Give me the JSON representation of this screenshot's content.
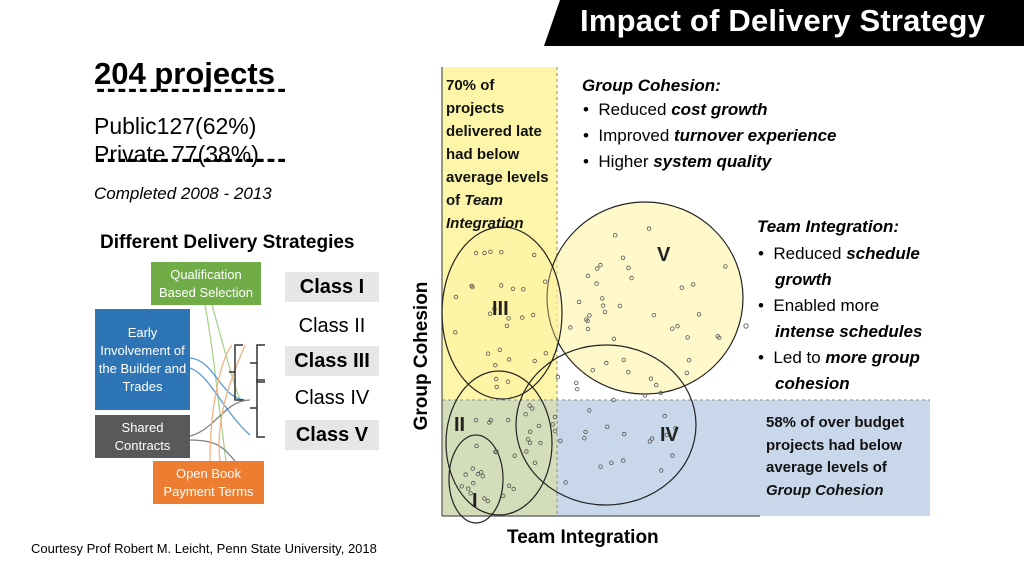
{
  "title": "Impact of Delivery Strategy",
  "stats": {
    "total": "204 projects",
    "dashes": "------------------",
    "public_label": "Public",
    "public_value": "127(62%)",
    "private_label": "Private",
    "private_value": "77(38%)",
    "completed": "Completed 2008 - 2013"
  },
  "strategies": {
    "title": "Different Delivery Strategies",
    "boxes": {
      "qbs": "Qualification Based Selection",
      "early": "Early Involvement of the Builder and Trades",
      "shared": "Shared Contracts",
      "open": "Open Book Payment Terms"
    },
    "classes": [
      "Class I",
      "Class II",
      "Class III",
      "Class IV",
      "Class V"
    ]
  },
  "chart": {
    "y_axis": "Group Cohesion",
    "x_axis": "Team Integration",
    "regions": [
      "I",
      "II",
      "III",
      "IV",
      "V"
    ],
    "yellow_note": {
      "text": "70% of projects delivered late had below average levels of",
      "emphasis": "Team Integration"
    },
    "blue_note": {
      "text": "58% of over budget projects had below average levels of",
      "emphasis": "Group Cohesion"
    },
    "colors": {
      "yellow": "#fdf6a8",
      "blue": "#c8d8ea",
      "green_overlap": "#d4ddb9"
    }
  },
  "group_cohesion": {
    "title": "Group Cohesion:",
    "bullets": [
      {
        "text": "Reduced ",
        "em": "cost growth"
      },
      {
        "text": "Improved ",
        "em": "turnover experience"
      },
      {
        "text": "Higher ",
        "em": "system quality"
      }
    ]
  },
  "team_integration": {
    "title": "Team Integration:",
    "bullets": [
      {
        "text": "Reduced ",
        "em": "schedule growth"
      },
      {
        "text": "Enabled more ",
        "em": "intense schedules"
      },
      {
        "text": "Led to ",
        "em": "more group cohesion"
      }
    ]
  },
  "courtesy": "Courtesy Prof Robert M. Leicht, Penn State University, 2018"
}
